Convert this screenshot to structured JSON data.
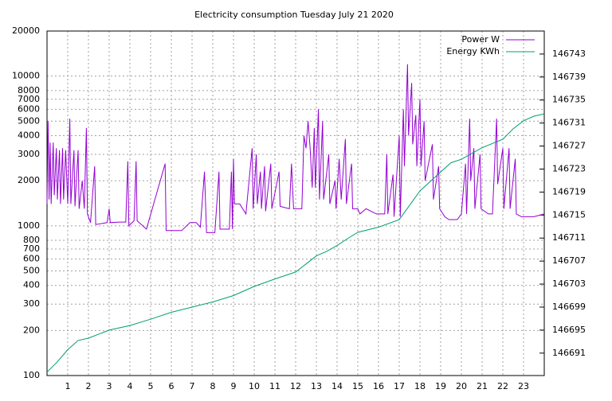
{
  "chart_data": {
    "type": "line",
    "title": "Electricity consumption Tuesday July 21 2020",
    "ylog": true,
    "grid": true,
    "legend": "top-right",
    "xlim": [
      0,
      24
    ],
    "xticks": [
      1,
      2,
      3,
      4,
      5,
      6,
      7,
      8,
      9,
      10,
      11,
      12,
      13,
      14,
      15,
      16,
      17,
      18,
      19,
      20,
      21,
      22,
      23
    ],
    "ylim": [
      100,
      20000
    ],
    "yticks": [
      100,
      200,
      300,
      400,
      500,
      600,
      700,
      800,
      1000,
      2000,
      3000,
      4000,
      5000,
      6000,
      7000,
      8000,
      10000,
      20000
    ],
    "y2lim": [
      146687.1,
      146747.0
    ],
    "y2ticks": [
      146691,
      146695,
      146699,
      146703,
      146707,
      146711,
      146715,
      146719,
      146723,
      146727,
      146731,
      146735,
      146739,
      146743
    ],
    "series": [
      {
        "name": "Power W",
        "color": "#9400d3",
        "x": [
          0,
          0.05,
          0.1,
          0.15,
          0.2,
          0.3,
          0.35,
          0.45,
          0.5,
          0.6,
          0.65,
          0.75,
          0.8,
          0.9,
          1.0,
          1.1,
          1.15,
          1.3,
          1.35,
          1.5,
          1.55,
          1.7,
          1.8,
          1.9,
          1.95,
          2.1,
          2.3,
          2.35,
          2.9,
          3.0,
          3.05,
          3.5,
          3.8,
          3.9,
          3.95,
          4.2,
          4.3,
          4.35,
          4.8,
          5.7,
          5.75,
          6.5,
          6.9,
          7.2,
          7.4,
          7.6,
          7.7,
          8.1,
          8.3,
          8.35,
          8.8,
          8.9,
          8.95,
          9.0,
          9.05,
          9.3,
          9.6,
          9.9,
          9.95,
          10.1,
          10.15,
          10.3,
          10.35,
          10.5,
          10.55,
          10.8,
          10.85,
          11.2,
          11.25,
          11.7,
          11.8,
          11.9,
          12.3,
          12.4,
          12.5,
          12.6,
          12.7,
          12.8,
          12.9,
          12.95,
          13.1,
          13.15,
          13.3,
          13.35,
          13.6,
          13.65,
          13.9,
          13.95,
          14.1,
          14.2,
          14.4,
          14.45,
          14.7,
          14.75,
          15.0,
          15.1,
          15.4,
          15.9,
          16.3,
          16.4,
          16.45,
          16.7,
          16.75,
          17.0,
          17.05,
          17.2,
          17.25,
          17.4,
          17.45,
          17.6,
          17.65,
          17.8,
          17.85,
          18.0,
          18.05,
          18.2,
          18.25,
          18.6,
          18.65,
          18.9,
          18.95,
          19.2,
          19.4,
          19.8,
          20.0,
          20.2,
          20.25,
          20.4,
          20.45,
          20.6,
          20.65,
          20.9,
          20.95,
          21.3,
          21.5,
          21.7,
          21.75,
          22.0,
          22.05,
          22.3,
          22.35,
          22.6,
          22.65,
          22.9,
          23.5,
          24.0
        ],
        "values": [
          1400,
          5000,
          1500,
          3600,
          1400,
          3600,
          1600,
          3300,
          1500,
          3200,
          1400,
          3300,
          1500,
          3200,
          1400,
          5200,
          1400,
          3200,
          1350,
          3200,
          1300,
          2000,
          1300,
          4500,
          1200,
          1050,
          2500,
          1020,
          1050,
          1300,
          1050,
          1060,
          1060,
          2700,
          1000,
          1080,
          2700,
          1080,
          950,
          2600,
          930,
          930,
          1050,
          1050,
          980,
          2300,
          900,
          900,
          2300,
          950,
          950,
          2300,
          950,
          2800,
          1400,
          1400,
          1200,
          3300,
          1300,
          3000,
          1400,
          2300,
          1300,
          2500,
          1250,
          2600,
          1300,
          2300,
          1350,
          1300,
          2600,
          1300,
          1300,
          4000,
          3300,
          5000,
          3300,
          1800,
          4500,
          1800,
          6000,
          1500,
          5000,
          1500,
          3000,
          1400,
          2000,
          1300,
          2800,
          1500,
          3800,
          1400,
          2600,
          1300,
          1300,
          1200,
          1300,
          1200,
          1200,
          3000,
          1200,
          2200,
          1150,
          4000,
          1150,
          6000,
          2500,
          12000,
          4000,
          9000,
          3500,
          5500,
          2500,
          7000,
          2500,
          5000,
          2000,
          3500,
          1500,
          2500,
          1300,
          1150,
          1100,
          1100,
          1200,
          2600,
          1200,
          5200,
          2000,
          3300,
          1300,
          3000,
          1300,
          1200,
          1200,
          5200,
          1900,
          3300,
          1300,
          3300,
          1300,
          2800,
          1200,
          1150,
          1150,
          1200
        ]
      },
      {
        "name": "Energy KWh",
        "color": "#009e73",
        "axis": "y2",
        "x": [
          0,
          0.5,
          1,
          1.5,
          2,
          3,
          4,
          5,
          6,
          7,
          8,
          9,
          10,
          11,
          12,
          12.5,
          13,
          13.5,
          14,
          14.5,
          15,
          16,
          17,
          17.5,
          18,
          19,
          19.5,
          20,
          21,
          22,
          22.5,
          23,
          23.5,
          24
        ],
        "values": [
          146687.7,
          146689.5,
          146691.6,
          146693.2,
          146693.6,
          146695.0,
          146695.8,
          146696.9,
          146698.1,
          146699.0,
          146699.9,
          146701.0,
          146702.6,
          146703.9,
          146705.1,
          146706.5,
          146707.9,
          146708.7,
          146709.7,
          146710.9,
          146712.0,
          146712.9,
          146714.2,
          146716.7,
          146719.2,
          146722.5,
          146724.1,
          146724.7,
          146726.7,
          146728.2,
          146730.0,
          146731.4,
          146732.2,
          146732.6
        ]
      }
    ]
  }
}
